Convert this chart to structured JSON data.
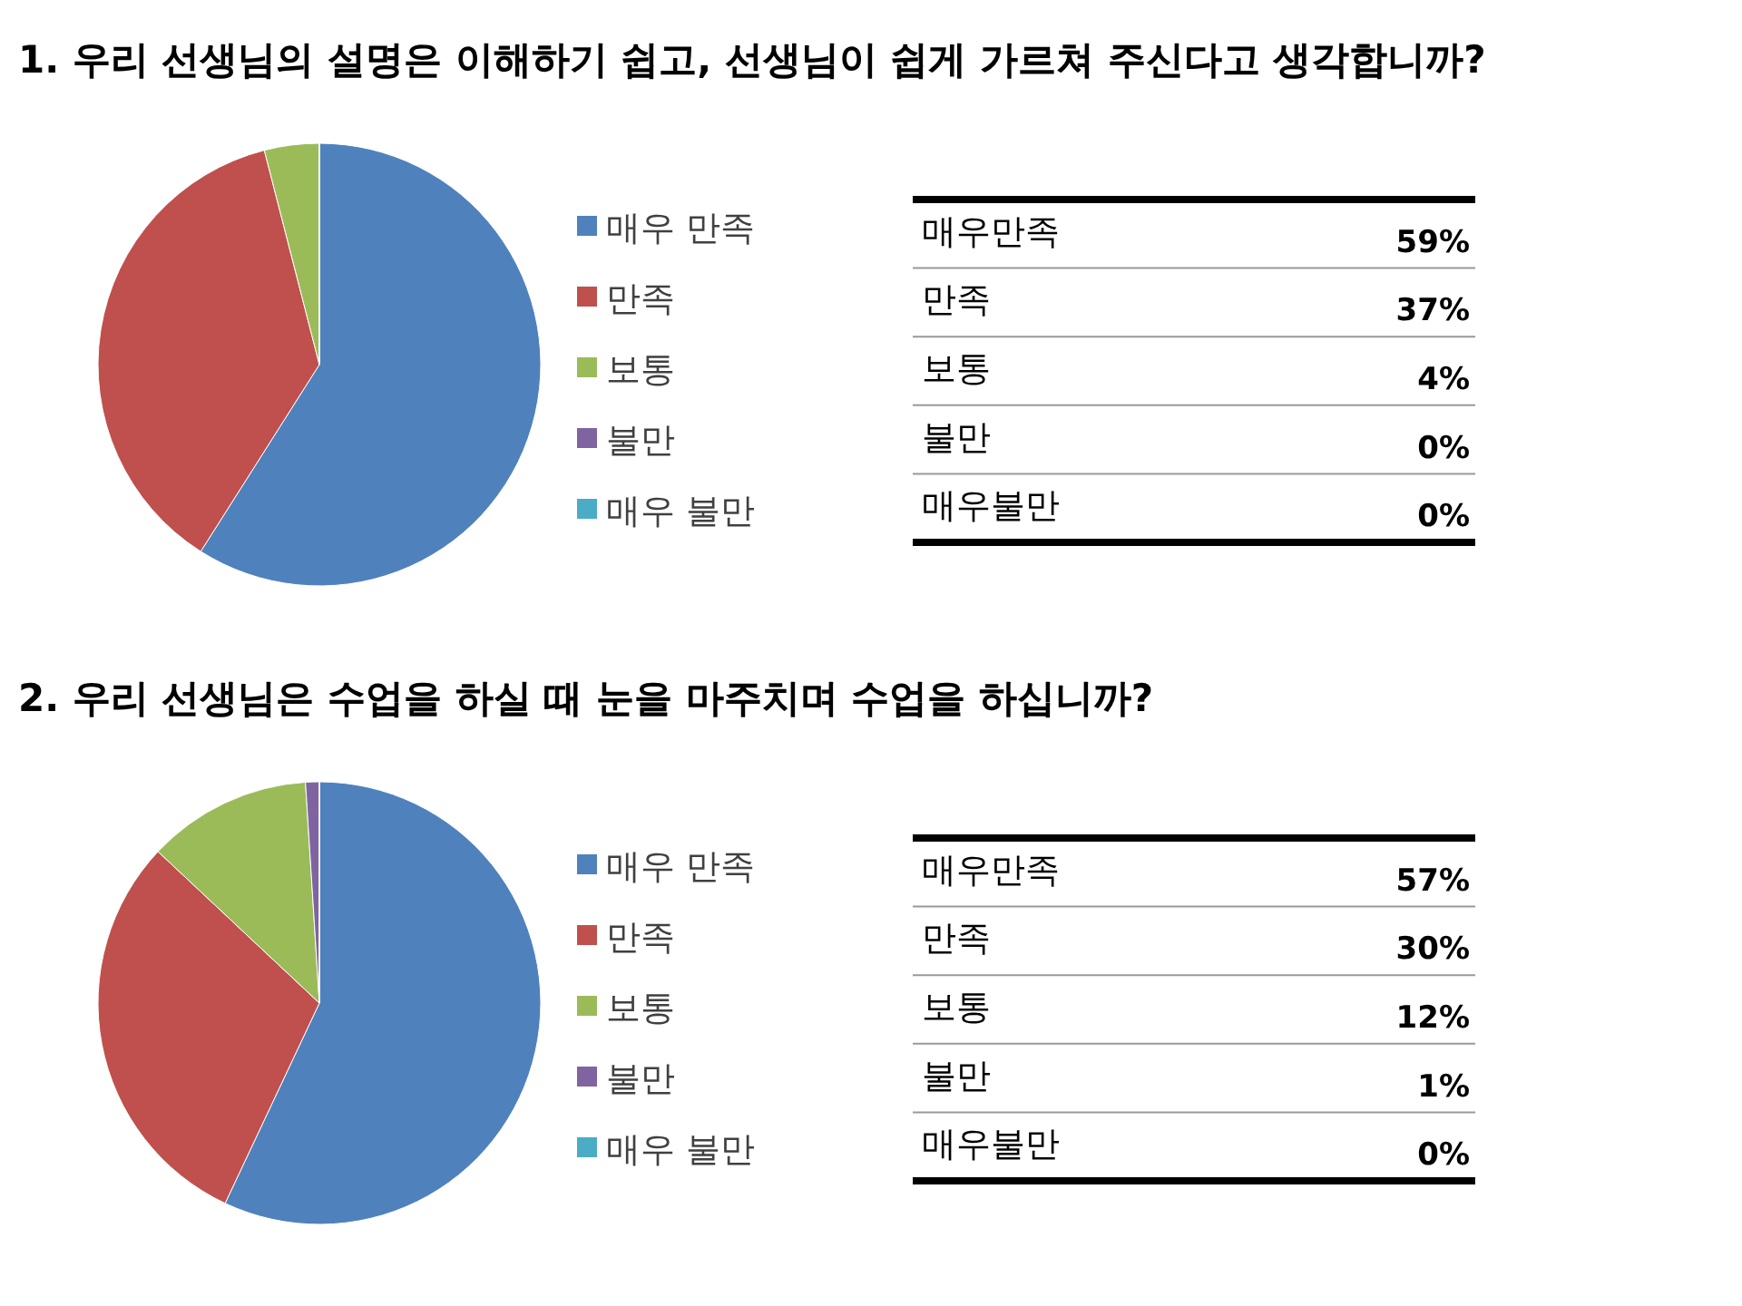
{
  "chart_data": [
    {
      "type": "pie",
      "title": "1. 우리 선생님의 설명은 이해하기 쉽고, 선생님이 쉽게 가르쳐 주신다고 생각합니까?",
      "categories": [
        "매우 만족",
        "만족",
        "보통",
        "불만",
        "매우 불만"
      ],
      "values": [
        59,
        37,
        4,
        0,
        0
      ],
      "colors": [
        "#4f81bd",
        "#c0504d",
        "#9bbb59",
        "#8064a2",
        "#4bacc6"
      ],
      "value_labels": [
        "59%",
        "37%",
        "4%",
        "0%",
        "0%"
      ],
      "annotations": [
        "매우만족",
        "만족",
        "보통",
        "불만",
        "매우불만"
      ],
      "legend": "right"
    },
    {
      "type": "pie",
      "title": "2. 우리 선생님은 수업을 하실 때 눈을 마주치며 수업을 하십니까?",
      "categories": [
        "매우 만족",
        "만족",
        "보통",
        "불만",
        "매우 불만"
      ],
      "values": [
        57,
        30,
        12,
        1,
        0
      ],
      "colors": [
        "#4f81bd",
        "#c0504d",
        "#9bbb59",
        "#8064a2",
        "#4bacc6"
      ],
      "value_labels": [
        "57%",
        "30%",
        "12%",
        "1%",
        "0%"
      ],
      "annotations": [
        "매우만족",
        "만족",
        "보통",
        "불만",
        "매우불만"
      ],
      "legend": "right"
    }
  ]
}
